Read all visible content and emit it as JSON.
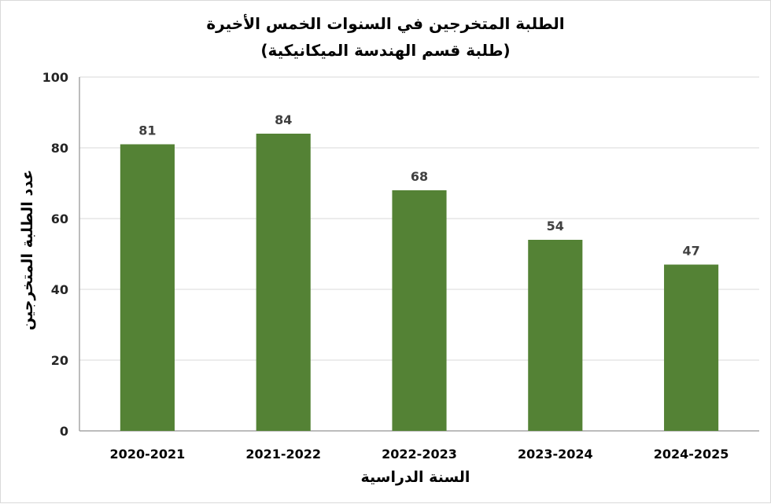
{
  "chart_data": {
    "type": "bar",
    "title": "الطلبة المتخرجين في السنوات الخمس الأخيرة",
    "subtitle": "(طلبة قسم الهندسة الميكانيكية)",
    "xlabel": "السنة الدراسية",
    "ylabel": "عدد الطلبة المتخرجين",
    "categories": [
      "2020-2021",
      "2021-2022",
      "2022-2023",
      "2023-2024",
      "2024-2025"
    ],
    "values": [
      81,
      84,
      68,
      54,
      47
    ],
    "ylim": [
      0,
      100
    ],
    "yticks": [
      "0",
      "20",
      "40",
      "60",
      "80",
      "100"
    ],
    "grid": true,
    "bar_color": "#548235",
    "data_labels": true
  }
}
